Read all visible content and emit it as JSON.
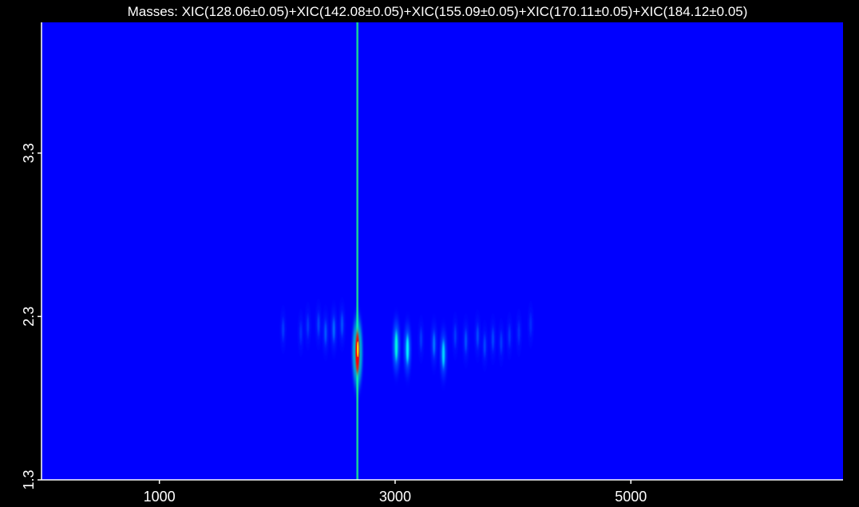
{
  "chart_data": {
    "type": "heatmap",
    "title": "Masses:  XIC(128.06±0.05)+XIC(142.08±0.05)+XIC(155.09±0.05)+XIC(170.11±0.05)+XIC(184.12±0.05)",
    "xlabel": "",
    "ylabel": "",
    "x_ticks": [
      1000,
      3000,
      5000
    ],
    "x_tick_labels": [
      "1000",
      "3000",
      "5000"
    ],
    "y_ticks": [
      1.3,
      2.3,
      3.3
    ],
    "y_tick_labels": [
      "1.3",
      "2.3",
      "3.3"
    ],
    "xlim": [
      0,
      6800
    ],
    "ylim": [
      1.3,
      4.1
    ],
    "background_color": "#0000ff",
    "colormap": [
      "#0000ff",
      "#0080ff",
      "#00ffff",
      "#00ff80",
      "#ffff00",
      "#ff0000"
    ],
    "column_streak": {
      "x": 2680,
      "intensity": 0.55
    },
    "peaks": [
      {
        "x": 2680,
        "y": 2.08,
        "intensity": 1.0
      },
      {
        "x": 3010,
        "y": 2.12,
        "intensity": 0.45
      },
      {
        "x": 3105,
        "y": 2.1,
        "intensity": 0.4
      },
      {
        "x": 3410,
        "y": 2.07,
        "intensity": 0.35
      },
      {
        "x": 3330,
        "y": 2.13,
        "intensity": 0.2
      },
      {
        "x": 2480,
        "y": 2.22,
        "intensity": 0.18
      },
      {
        "x": 2410,
        "y": 2.2,
        "intensity": 0.15
      },
      {
        "x": 2550,
        "y": 2.25,
        "intensity": 0.14
      },
      {
        "x": 2350,
        "y": 2.25,
        "intensity": 0.12
      },
      {
        "x": 2260,
        "y": 2.24,
        "intensity": 0.1
      },
      {
        "x": 2050,
        "y": 2.22,
        "intensity": 0.1
      },
      {
        "x": 2200,
        "y": 2.2,
        "intensity": 0.08
      },
      {
        "x": 3600,
        "y": 2.15,
        "intensity": 0.14
      },
      {
        "x": 3700,
        "y": 2.18,
        "intensity": 0.13
      },
      {
        "x": 3760,
        "y": 2.12,
        "intensity": 0.12
      },
      {
        "x": 3830,
        "y": 2.16,
        "intensity": 0.12
      },
      {
        "x": 3900,
        "y": 2.14,
        "intensity": 0.1
      },
      {
        "x": 3970,
        "y": 2.18,
        "intensity": 0.09
      },
      {
        "x": 4050,
        "y": 2.2,
        "intensity": 0.08
      },
      {
        "x": 4150,
        "y": 2.25,
        "intensity": 0.07
      },
      {
        "x": 3220,
        "y": 2.16,
        "intensity": 0.1
      },
      {
        "x": 3510,
        "y": 2.18,
        "intensity": 0.1
      }
    ]
  }
}
